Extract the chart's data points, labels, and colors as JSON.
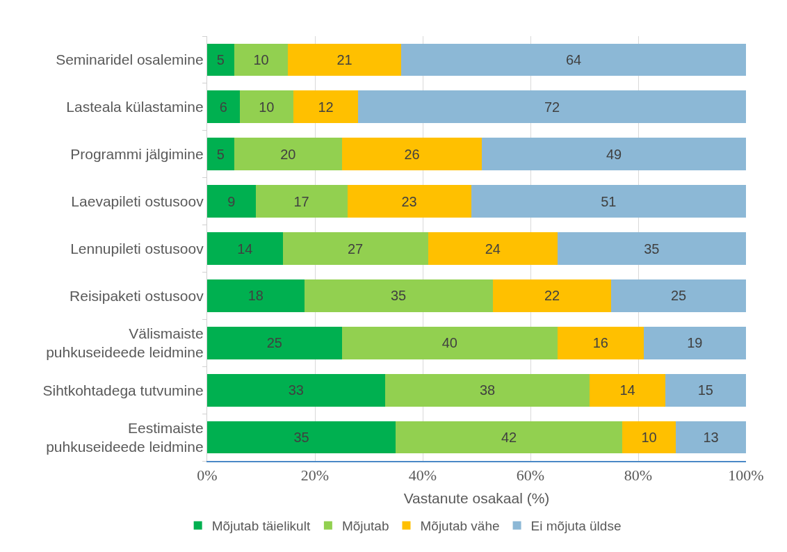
{
  "chart_data": {
    "type": "bar",
    "orientation": "horizontal",
    "stacked": true,
    "categories": [
      "Seminaridel osalemine",
      "Lasteala külastamine",
      "Programmi jälgimine",
      "Laevapileti ostusoov",
      "Lennupileti ostusoov",
      "Reisipaketi ostusoov",
      "Välismaiste puhkuseideede leidmine",
      "Sihtkohtadega tutvumine",
      "Eestimaiste puhkuseideede leidmine"
    ],
    "series": [
      {
        "name": "Mõjutab täielikult",
        "color": "#00b050",
        "values": [
          5,
          6,
          5,
          9,
          14,
          18,
          25,
          33,
          35
        ]
      },
      {
        "name": "Mõjutab",
        "color": "#92d050",
        "values": [
          10,
          10,
          20,
          17,
          27,
          35,
          40,
          38,
          42
        ]
      },
      {
        "name": "Mõjutab vähe",
        "color": "#ffc000",
        "values": [
          21,
          12,
          26,
          23,
          24,
          22,
          16,
          14,
          10
        ]
      },
      {
        "name": "Ei mõjuta üldse",
        "color": "#8cb8d6",
        "values": [
          64,
          72,
          49,
          51,
          35,
          25,
          19,
          15,
          13
        ]
      }
    ],
    "xlim": [
      0,
      100
    ],
    "xticks": [
      {
        "value": 0,
        "label": "0%"
      },
      {
        "value": 20,
        "label": "20%"
      },
      {
        "value": 40,
        "label": "40%"
      },
      {
        "value": 60,
        "label": "60%"
      },
      {
        "value": 80,
        "label": "80%"
      },
      {
        "value": 100,
        "label": "100%"
      }
    ],
    "xlabel": "Vastanute osakaal (%)",
    "grid": "x",
    "legend": "bottom",
    "data_labels": true
  }
}
